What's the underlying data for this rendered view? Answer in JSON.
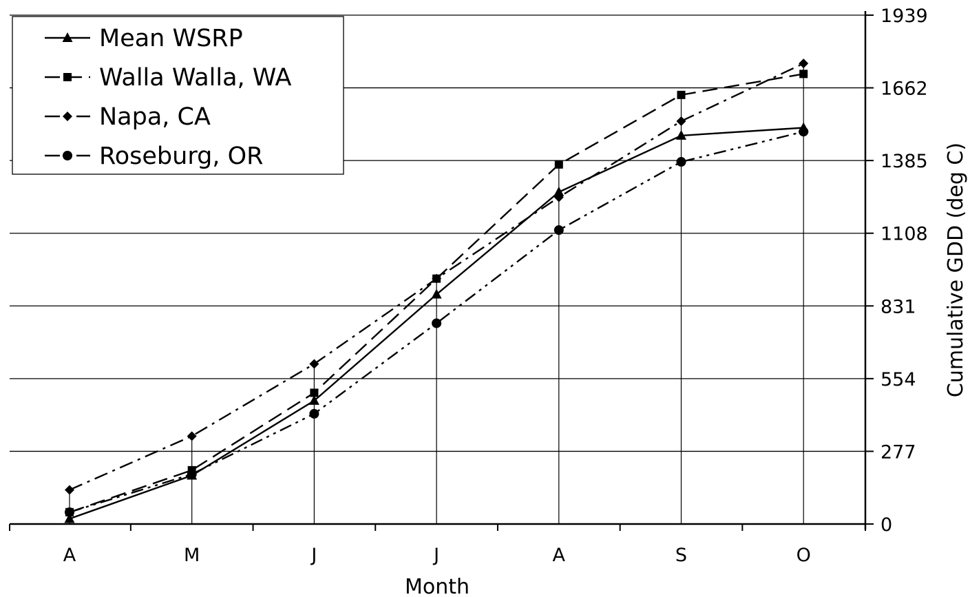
{
  "chart_data": {
    "type": "line",
    "title": "",
    "xlabel": "Month",
    "ylabel": "Cumulative GDD (deg C)",
    "categories": [
      "A",
      "M",
      "J",
      "J",
      "A",
      "S",
      "O"
    ],
    "y_ticks": [
      0,
      277,
      554,
      831,
      1108,
      1385,
      1662,
      1939
    ],
    "ylim": [
      0,
      1939
    ],
    "y_axis_side": "right",
    "grid": "horizontal major gridlines plus vertical drop lines at each month",
    "legend_position": "top-left",
    "series": [
      {
        "name": "Mean WSRP",
        "marker": "triangle",
        "dash": "solid",
        "values": [
          20,
          185,
          470,
          875,
          1265,
          1480,
          1510
        ]
      },
      {
        "name": "Walla Walla, WA",
        "marker": "square",
        "dash": "dashed",
        "values": [
          45,
          205,
          500,
          935,
          1370,
          1635,
          1715
        ]
      },
      {
        "name": "Napa, CA",
        "marker": "diamond",
        "dash": "dash-dot",
        "values": [
          130,
          335,
          610,
          935,
          1245,
          1535,
          1755
        ]
      },
      {
        "name": "Roseburg, OR",
        "marker": "circle",
        "dash": "dash-dot-dot",
        "values": [
          45,
          190,
          420,
          765,
          1120,
          1380,
          1495
        ]
      }
    ]
  }
}
